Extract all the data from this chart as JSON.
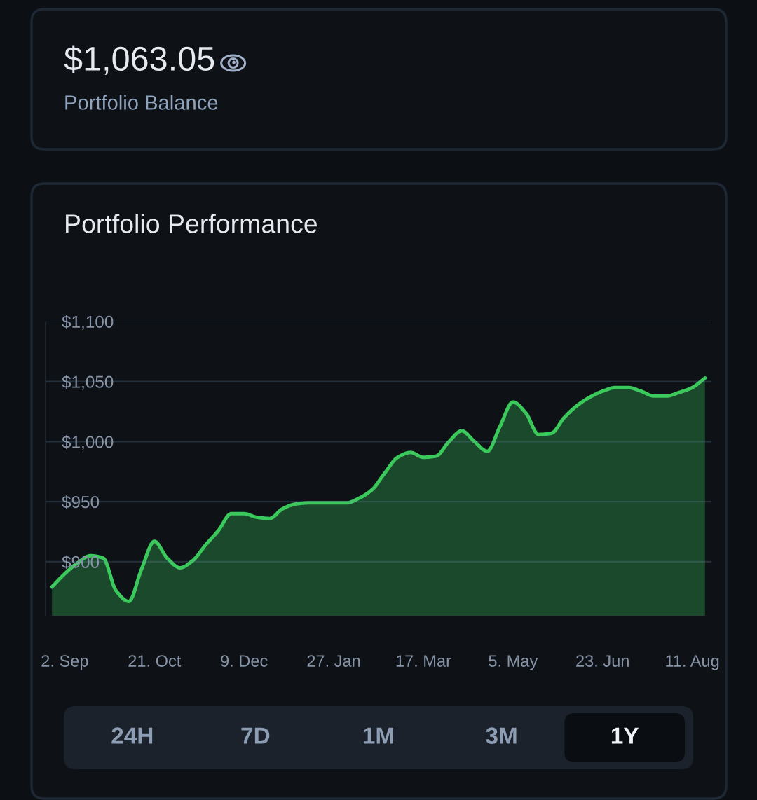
{
  "chart_data": [
    {
      "type": "other",
      "title": "$1,063.05",
      "subtitle": "Portfolio Balance"
    },
    {
      "type": "area",
      "title": "Portfolio Performance",
      "categories": [
        null,
        "2. Sep",
        null,
        null,
        null,
        null,
        null,
        null,
        "21. Oct",
        null,
        null,
        null,
        null,
        null,
        null,
        "9. Dec",
        null,
        null,
        null,
        null,
        null,
        null,
        "27. Jan",
        null,
        null,
        null,
        null,
        null,
        null,
        "17. Mar",
        null,
        null,
        null,
        null,
        null,
        null,
        "5. May",
        null,
        null,
        null,
        null,
        null,
        null,
        "23. Jun",
        null,
        null,
        null,
        null,
        null,
        null,
        "11. Aug",
        null
      ],
      "series": [
        {
          "color": "#3cc95c",
          "values": [
            879,
            890,
            899,
            905,
            903,
            876,
            867,
            894,
            917,
            903,
            895,
            901,
            914,
            926,
            940,
            940,
            937,
            936,
            944,
            948,
            949,
            949,
            949,
            949,
            953,
            960,
            974,
            987,
            991,
            987,
            988,
            1000,
            1009,
            1000,
            992,
            1013,
            1033,
            1024,
            1006,
            1007,
            1020,
            1030,
            1037,
            1042,
            1045,
            1045,
            1042,
            1038,
            1038,
            1041,
            1045,
            1053
          ]
        }
      ],
      "ylim": [
        855,
        1100
      ],
      "yticks": [
        {
          "value": 900,
          "label": "$900"
        },
        {
          "value": 950,
          "label": "$950"
        },
        {
          "value": 1000,
          "label": "$1,000"
        },
        {
          "value": 1050,
          "label": "$1,050"
        },
        {
          "value": 1100,
          "label": "$1,100"
        }
      ],
      "grid": "y",
      "annotations": [
        "24H",
        "7D",
        "1M",
        "3M",
        "1Y"
      ]
    }
  ]
}
